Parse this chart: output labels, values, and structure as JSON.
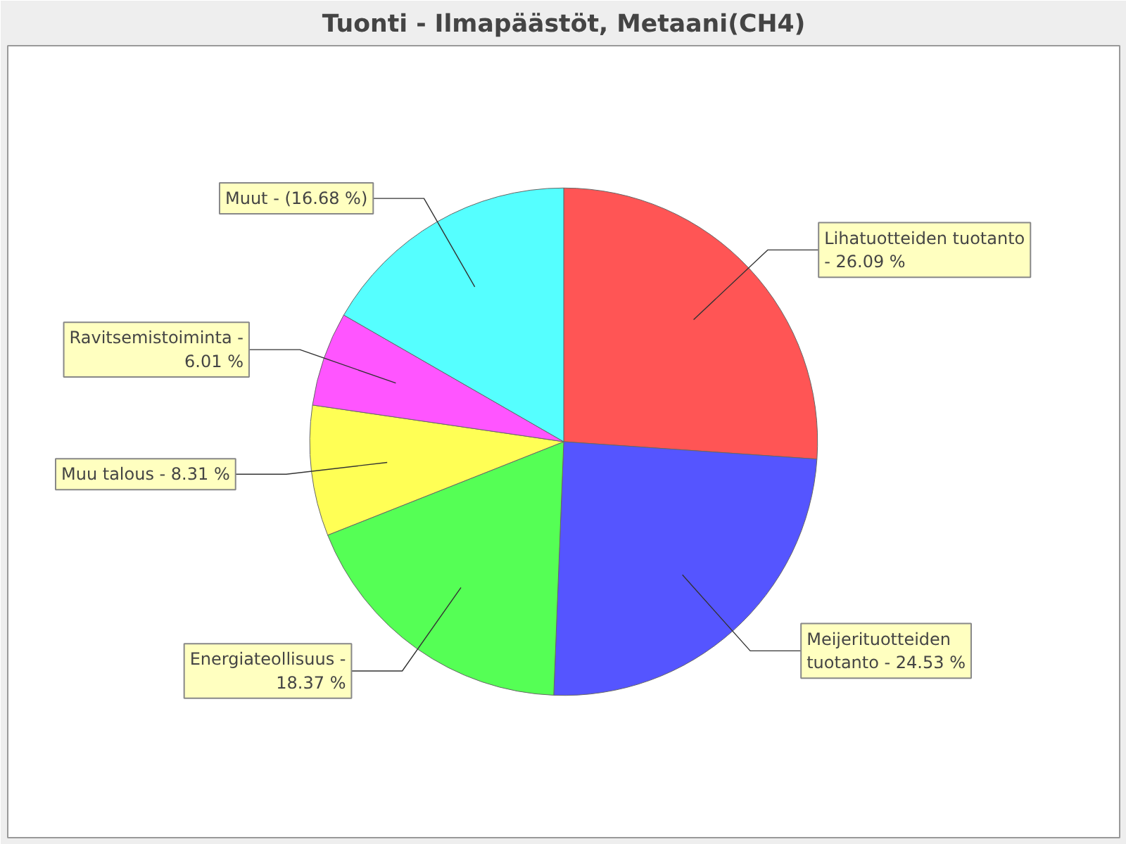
{
  "chart_data": {
    "type": "pie",
    "title": "Tuonti - Ilmapäästöt, Metaani(CH4)",
    "categories": [
      "Lihatuotteiden tuotanto -",
      "Meijerituotteiden tuotanto -",
      "Energiateollisuus -",
      "Muu talous -",
      "Ravitsemistoiminta -",
      "Muut -"
    ],
    "values": [
      26.09,
      24.53,
      18.37,
      8.31,
      6.01,
      16.68
    ],
    "colors": [
      "#ff5555",
      "#5555ff",
      "#55ff55",
      "#ffff55",
      "#ff55ff",
      "#55ffff"
    ],
    "value_labels": [
      "26.09 %",
      "24.53 %",
      "18.37 %",
      "8.31 %",
      "6.01 %",
      "(16.68 %)"
    ]
  }
}
